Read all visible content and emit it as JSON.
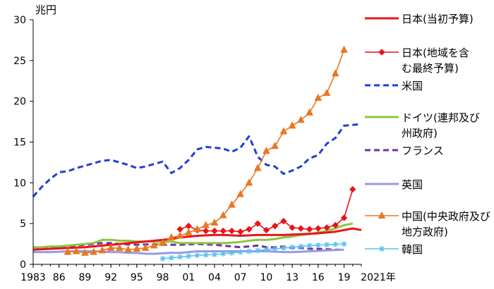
{
  "chart_data": {
    "type": "line",
    "title": "",
    "y_unit": "兆円",
    "x_unit_label": "2021年",
    "ylim": [
      0,
      30
    ],
    "xlim": [
      1983,
      2021
    ],
    "y_ticks": [
      0,
      5,
      10,
      15,
      20,
      25,
      30
    ],
    "x_ticks": [
      {
        "year": 1983,
        "label": "1983"
      },
      {
        "year": 1986,
        "label": "86"
      },
      {
        "year": 1989,
        "label": "89"
      },
      {
        "year": 1992,
        "label": "92"
      },
      {
        "year": 1995,
        "label": "95"
      },
      {
        "year": 1998,
        "label": "98"
      },
      {
        "year": 2001,
        "label": "01"
      },
      {
        "year": 2004,
        "label": "04"
      },
      {
        "year": 2007,
        "label": "07"
      },
      {
        "year": 2010,
        "label": "10"
      },
      {
        "year": 2013,
        "label": "13"
      },
      {
        "year": 2016,
        "label": "16"
      },
      {
        "year": 2019,
        "label": "19"
      }
    ],
    "grid": false,
    "legend_position": "right",
    "series": [
      {
        "name": "日本(当初予算)",
        "legend_lines": [
          "日本(当初予算)"
        ],
        "color": "#e8141a",
        "style": "solid",
        "marker": "none",
        "x": [
          1983,
          1984,
          1985,
          1986,
          1987,
          1988,
          1989,
          1990,
          1991,
          1992,
          1993,
          1994,
          1995,
          1996,
          1997,
          1998,
          1999,
          2000,
          2001,
          2002,
          2003,
          2004,
          2005,
          2006,
          2007,
          2008,
          2009,
          2010,
          2011,
          2012,
          2013,
          2014,
          2015,
          2016,
          2017,
          2018,
          2019,
          2020,
          2021
        ],
        "values": [
          1.8,
          1.85,
          1.9,
          1.95,
          2.0,
          2.05,
          2.1,
          2.2,
          2.3,
          2.4,
          2.5,
          2.6,
          2.7,
          2.8,
          2.9,
          3.0,
          3.1,
          3.3,
          3.4,
          3.5,
          3.55,
          3.6,
          3.6,
          3.55,
          3.5,
          3.55,
          3.6,
          3.6,
          3.6,
          3.6,
          3.65,
          3.7,
          3.75,
          3.8,
          3.9,
          4.0,
          4.2,
          4.4,
          4.2
        ]
      },
      {
        "name": "日本(地域を含む最終予算)",
        "legend_lines": [
          "日本(地域を含",
          "む最終予算)"
        ],
        "color": "#e8141a",
        "style": "solid",
        "marker": "diamond",
        "x": [
          2000,
          2001,
          2002,
          2003,
          2004,
          2005,
          2006,
          2007,
          2008,
          2009,
          2010,
          2011,
          2012,
          2013,
          2014,
          2015,
          2016,
          2017,
          2018,
          2019,
          2020
        ],
        "values": [
          4.3,
          4.7,
          4.2,
          4.1,
          4.1,
          4.1,
          4.1,
          4.0,
          4.3,
          5.0,
          4.2,
          4.7,
          5.3,
          4.5,
          4.4,
          4.3,
          4.4,
          4.5,
          4.8,
          5.7,
          9.2
        ]
      },
      {
        "name": "米国",
        "legend_lines": [
          "米国"
        ],
        "color": "#1f3fd6",
        "style": "dashed",
        "marker": "none",
        "x": [
          1983,
          1984,
          1985,
          1986,
          1987,
          1988,
          1989,
          1990,
          1991,
          1992,
          1993,
          1994,
          1995,
          1996,
          1997,
          1998,
          1999,
          2000,
          2001,
          2002,
          2003,
          2004,
          2005,
          2006,
          2007,
          2008,
          2009,
          2010,
          2011,
          2012,
          2013,
          2014,
          2015,
          2016,
          2017,
          2018,
          2019,
          2020,
          2021
        ],
        "values": [
          8.3,
          9.5,
          10.5,
          11.3,
          11.4,
          11.8,
          12.1,
          12.4,
          12.7,
          12.8,
          12.5,
          12.2,
          11.8,
          12.0,
          12.3,
          12.6,
          11.2,
          11.8,
          12.8,
          14.1,
          14.4,
          14.3,
          14.2,
          13.8,
          14.3,
          15.7,
          13.2,
          12.2,
          12.0,
          11.1,
          11.5,
          12.0,
          13.0,
          13.4,
          14.8,
          15.5,
          17.0,
          17.1,
          17.2
        ]
      },
      {
        "name": "ドイツ(連邦及び州政府)",
        "legend_lines": [
          "ドイツ(連邦及び",
          "州政府)"
        ],
        "color": "#8cc63f",
        "style": "solid",
        "marker": "none",
        "x": [
          1983,
          1984,
          1985,
          1986,
          1987,
          1988,
          1989,
          1990,
          1991,
          1992,
          1993,
          1994,
          1995,
          1996,
          1997,
          1998,
          1999,
          2000,
          2001,
          2002,
          2003,
          2004,
          2005,
          2006,
          2007,
          2008,
          2009,
          2010,
          2011,
          2012,
          2013,
          2014,
          2015,
          2016,
          2017,
          2018,
          2019,
          2020
        ],
        "values": [
          2.1,
          2.1,
          2.2,
          2.2,
          2.3,
          2.4,
          2.5,
          2.6,
          3.0,
          3.0,
          2.9,
          2.9,
          2.8,
          2.8,
          2.8,
          2.75,
          2.8,
          2.6,
          2.6,
          2.6,
          2.6,
          2.6,
          2.6,
          2.65,
          2.75,
          2.9,
          3.0,
          3.0,
          3.1,
          3.3,
          3.4,
          3.6,
          3.7,
          3.9,
          4.1,
          4.4,
          4.8,
          5.0
        ]
      },
      {
        "name": "フランス",
        "legend_lines": [
          "フランス"
        ],
        "color": "#7030a0",
        "style": "dashed",
        "marker": "none",
        "x": [
          1983,
          1984,
          1985,
          1986,
          1987,
          1988,
          1989,
          1990,
          1991,
          1992,
          1993,
          1994,
          1995,
          1996,
          1997,
          1998,
          1999,
          2000,
          2001,
          2002,
          2003,
          2004,
          2005,
          2006,
          2007,
          2008,
          2009,
          2010,
          2011,
          2012,
          2013,
          2014,
          2015,
          2016,
          2017,
          2018,
          2019
        ],
        "values": [
          1.8,
          1.9,
          2.0,
          2.1,
          2.2,
          2.3,
          2.4,
          2.5,
          2.6,
          2.6,
          2.5,
          2.45,
          2.4,
          2.45,
          2.45,
          2.4,
          2.4,
          2.4,
          2.45,
          2.5,
          2.45,
          2.4,
          2.3,
          2.2,
          2.1,
          2.2,
          2.3,
          2.1,
          2.1,
          2.2,
          2.0,
          2.0,
          1.9,
          1.9,
          1.85,
          1.8,
          1.8
        ]
      },
      {
        "name": "英国",
        "legend_lines": [
          "英国"
        ],
        "color": "#9999e6",
        "style": "solid",
        "marker": "none",
        "x": [
          1983,
          1984,
          1985,
          1986,
          1987,
          1988,
          1989,
          1990,
          1991,
          1992,
          1993,
          1994,
          1995,
          1996,
          1997,
          1998,
          1999,
          2000,
          2001,
          2002,
          2003,
          2004,
          2005,
          2006,
          2007,
          2008,
          2009,
          2010,
          2011,
          2012,
          2013,
          2014,
          2015,
          2016,
          2017,
          2018,
          2019
        ],
        "values": [
          1.5,
          1.5,
          1.5,
          1.55,
          1.6,
          1.6,
          1.6,
          1.6,
          1.55,
          1.5,
          1.5,
          1.4,
          1.4,
          1.3,
          1.3,
          1.35,
          1.4,
          1.4,
          1.5,
          1.6,
          1.6,
          1.6,
          1.6,
          1.6,
          1.6,
          1.6,
          1.6,
          1.6,
          1.55,
          1.5,
          1.5,
          1.55,
          1.6,
          1.65,
          1.7,
          1.75,
          1.8
        ]
      },
      {
        "name": "中国(中央政府及び地方政府)",
        "legend_lines": [
          "中国(中央政府及び",
          "地方政府)"
        ],
        "color": "#e87722",
        "style": "solid",
        "marker": "triangle",
        "x": [
          1987,
          1988,
          1989,
          1990,
          1991,
          1992,
          1993,
          1994,
          1995,
          1996,
          1997,
          1998,
          1999,
          2000,
          2001,
          2002,
          2003,
          2004,
          2005,
          2006,
          2007,
          2008,
          2009,
          2010,
          2011,
          2012,
          2013,
          2014,
          2015,
          2016,
          2017,
          2018,
          2019
        ],
        "values": [
          1.5,
          1.6,
          1.4,
          1.5,
          1.7,
          2.0,
          2.0,
          1.8,
          1.9,
          2.0,
          2.3,
          2.6,
          3.3,
          3.5,
          3.9,
          4.3,
          4.8,
          5.1,
          6.0,
          7.3,
          8.6,
          10.0,
          11.8,
          13.9,
          14.5,
          16.3,
          17.0,
          17.7,
          18.6,
          20.4,
          21.0,
          23.4,
          26.3
        ]
      },
      {
        "name": "韓国",
        "legend_lines": [
          "韓国"
        ],
        "color": "#5bc0ee",
        "style": "solid",
        "marker": "asterisk",
        "x": [
          1998,
          1999,
          2000,
          2001,
          2002,
          2003,
          2004,
          2005,
          2006,
          2007,
          2008,
          2009,
          2010,
          2011,
          2012,
          2013,
          2014,
          2015,
          2016,
          2017,
          2018,
          2019
        ],
        "values": [
          0.7,
          0.8,
          0.9,
          1.0,
          1.1,
          1.15,
          1.2,
          1.3,
          1.4,
          1.5,
          1.6,
          1.7,
          1.8,
          1.9,
          2.0,
          2.1,
          2.2,
          2.3,
          2.35,
          2.4,
          2.45,
          2.5
        ]
      }
    ]
  }
}
